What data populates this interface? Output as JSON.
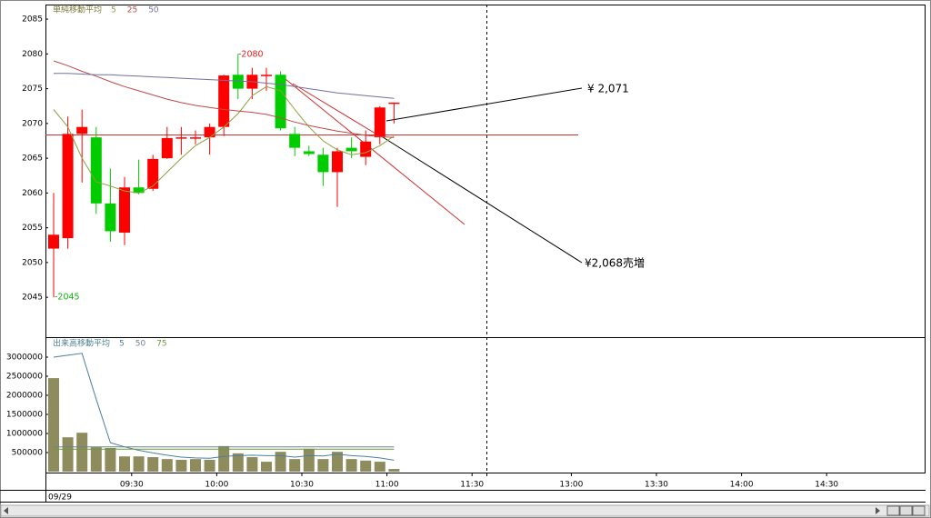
{
  "chart_data": [
    {
      "type": "candlestick",
      "title": "単純移動平均",
      "title_color": "#7a7a3a",
      "up_color": "#ff0000",
      "down_color": "#00cc00",
      "ylim": [
        2039.4,
        2087.1
      ],
      "yticks": [
        2045,
        2050,
        2055,
        2060,
        2065,
        2070,
        2075,
        2080,
        2085
      ],
      "open": [
        2052,
        2053.5,
        2068.5,
        2068,
        2058.5,
        2054.3,
        2060.8,
        2060.6,
        2065,
        2068,
        2068,
        2068,
        2069.5,
        2077,
        2075,
        2077,
        2077,
        2068.5,
        2066,
        2065.5,
        2063,
        2066.5,
        2065.2,
        2068,
        2073,
        null,
        null,
        null,
        null,
        null,
        null,
        null,
        null,
        null,
        null,
        null,
        null,
        null,
        null,
        null,
        null,
        null,
        null,
        null,
        null,
        null,
        null,
        null,
        null,
        null,
        null,
        null,
        null,
        null,
        null,
        null,
        null,
        null,
        null,
        null,
        null
      ],
      "high": [
        2060,
        2071,
        2072,
        2069.5,
        2063.5,
        2062.3,
        2064.8,
        2065.5,
        2069.5,
        2069.5,
        2069,
        2070,
        2077,
        2080,
        2078,
        2078,
        2077.5,
        2069.5,
        2066.8,
        2066.5,
        2066.5,
        2068,
        2069,
        2072.5,
        2073,
        null,
        null,
        null,
        null,
        null,
        null,
        null,
        null,
        null,
        null,
        null,
        null,
        null,
        null,
        null,
        null,
        null,
        null,
        null,
        null,
        null,
        null,
        null,
        null,
        null,
        null,
        null,
        null,
        null,
        null,
        null,
        null,
        null,
        null,
        null,
        null
      ],
      "low": [
        2045,
        2052,
        2061.5,
        2057,
        2053,
        2052.5,
        2059.8,
        2060.3,
        2064.9,
        2065.5,
        2067,
        2065.5,
        2068.2,
        2073.5,
        2073.5,
        2074.7,
        2069,
        2065.3,
        2065.3,
        2061,
        2058,
        2065,
        2064,
        2067,
        2070,
        null,
        null,
        null,
        null,
        null,
        null,
        null,
        null,
        null,
        null,
        null,
        null,
        null,
        null,
        null,
        null,
        null,
        null,
        null,
        null,
        null,
        null,
        null,
        null,
        null,
        null,
        null,
        null,
        null,
        null,
        null,
        null,
        null,
        null,
        null,
        null
      ],
      "close": [
        2054,
        2068.5,
        2069.5,
        2058.5,
        2054.5,
        2060.8,
        2060,
        2064.9,
        2067.9,
        2068,
        2068,
        2069.5,
        2076.9,
        2075,
        2077,
        2077,
        2069.3,
        2066.5,
        2065.6,
        2063,
        2066,
        2066,
        2067.4,
        2072.3,
        2073,
        null,
        null,
        null,
        null,
        null,
        null,
        null,
        null,
        null,
        null,
        null,
        null,
        null,
        null,
        null,
        null,
        null,
        null,
        null,
        null,
        null,
        null,
        null,
        null,
        null,
        null,
        null,
        null,
        null,
        null,
        null,
        null,
        null,
        null,
        null,
        null
      ],
      "series": [
        {
          "name": "5",
          "color": "#8ca040",
          "values": [
            2072,
            2069.5,
            2065,
            2061.6,
            2061,
            2060.3,
            2060,
            2061,
            2063,
            2065,
            2066.8,
            2068,
            2069.5,
            2071.4,
            2074,
            2075.3,
            2074.7,
            2072,
            2069.5,
            2067.5,
            2066.2,
            2065.5,
            2065.8,
            2066.8,
            2068.2,
            null,
            null,
            null,
            null,
            null,
            null,
            null,
            null,
            null,
            null,
            null,
            null,
            null,
            null,
            null,
            null,
            null,
            null,
            null,
            null,
            null,
            null,
            null,
            null,
            null,
            null,
            null,
            null,
            null,
            null,
            null,
            null,
            null,
            null,
            null,
            null
          ]
        },
        {
          "name": "25",
          "color": "#c04848",
          "values": [
            2079,
            2078.3,
            2077.5,
            2076.8,
            2076,
            2075.3,
            2074.7,
            2074.1,
            2073.5,
            2073,
            2072.6,
            2072.3,
            2072,
            2071.8,
            2071.6,
            2071.3,
            2070.8,
            2070.2,
            2069.7,
            2069.3,
            2068.9,
            2068.6,
            2068.3,
            2068.1,
            2068,
            null,
            null,
            null,
            null,
            null,
            null,
            null,
            null,
            null,
            null,
            null,
            null,
            null,
            null,
            null,
            null,
            null,
            null,
            null,
            null,
            null,
            null,
            null,
            null,
            null,
            null,
            null,
            null,
            null,
            null,
            null,
            null,
            null,
            null,
            null,
            null
          ]
        },
        {
          "name": "50",
          "color": "#7070a0",
          "values": [
            2077.2,
            2077.2,
            2077.1,
            2077,
            2077,
            2076.9,
            2076.8,
            2076.7,
            2076.6,
            2076.5,
            2076.4,
            2076.3,
            2076.2,
            2076.1,
            2076,
            2075.8,
            2075.6,
            2075.3,
            2075,
            2074.7,
            2074.4,
            2074.2,
            2074,
            2073.8,
            2073.6,
            null,
            null,
            null,
            null,
            null,
            null,
            null,
            null,
            null,
            null,
            null,
            null,
            null,
            null,
            null,
            null,
            null,
            null,
            null,
            null,
            null,
            null,
            null,
            null,
            null,
            null,
            null,
            null,
            null,
            null,
            null,
            null,
            null,
            null,
            null,
            null
          ]
        }
      ],
      "annotations": [
        "-2080",
        "-2045",
        "¥ 2,071",
        "¥2,068売増"
      ]
    },
    {
      "type": "bar",
      "title": "出来高移動平均",
      "title_color": "#4a7f8f",
      "color": "#8e8c5c",
      "date": "09/29",
      "categories": [
        null,
        null,
        null,
        null,
        null,
        null,
        "09:30",
        null,
        null,
        null,
        null,
        null,
        "10:00",
        null,
        null,
        null,
        null,
        null,
        "10:30",
        null,
        null,
        null,
        null,
        null,
        "11:00",
        null,
        null,
        null,
        null,
        null,
        "11:30",
        null,
        null,
        null,
        null,
        null,
        null,
        "13:00",
        null,
        null,
        null,
        null,
        null,
        "13:30",
        null,
        null,
        null,
        null,
        null,
        "14:00",
        null,
        null,
        null,
        null,
        null,
        "14:30",
        null,
        null,
        null,
        null,
        null
      ],
      "ylim": [
        0,
        3500000
      ],
      "yticks": [
        500000,
        1000000,
        1500000,
        2000000,
        2500000,
        3000000
      ],
      "values": [
        2450000,
        900000,
        1020000,
        640000,
        620000,
        400000,
        400000,
        380000,
        330000,
        310000,
        330000,
        310000,
        670000,
        480000,
        380000,
        260000,
        520000,
        330000,
        600000,
        330000,
        520000,
        330000,
        290000,
        260000,
        70000,
        null,
        null,
        null,
        null,
        null,
        null,
        null,
        null,
        null,
        null,
        null,
        null,
        null,
        null,
        null,
        null,
        null,
        null,
        null,
        null,
        null,
        null,
        null,
        null,
        null,
        null,
        null,
        null,
        null,
        null,
        null,
        null,
        null,
        null,
        null,
        null
      ],
      "series": [
        {
          "name": "5",
          "color": "#4a80a0",
          "values": [
            3000000,
            3050000,
            3100000,
            1900000,
            760000,
            650000,
            560000,
            490000,
            430000,
            380000,
            360000,
            350000,
            400000,
            420000,
            430000,
            420000,
            420000,
            380000,
            420000,
            410000,
            460000,
            420000,
            400000,
            360000,
            300000,
            null,
            null,
            null,
            null,
            null,
            null,
            null,
            null,
            null,
            null,
            null,
            null,
            null,
            null,
            null,
            null,
            null,
            null,
            null,
            null,
            null,
            null,
            null,
            null,
            null,
            null,
            null,
            null,
            null,
            null,
            null,
            null,
            null,
            null,
            null,
            null
          ]
        },
        {
          "name": "50",
          "color": "#708090",
          "values": [
            650000,
            650000,
            650000,
            650000,
            650000,
            650000,
            650000,
            650000,
            650000,
            650000,
            650000,
            650000,
            650000,
            650000,
            650000,
            650000,
            650000,
            650000,
            650000,
            650000,
            650000,
            650000,
            650000,
            650000,
            650000,
            null,
            null,
            null,
            null,
            null,
            null,
            null,
            null,
            null,
            null,
            null,
            null,
            null,
            null,
            null,
            null,
            null,
            null,
            null,
            null,
            null,
            null,
            null,
            null,
            null,
            null,
            null,
            null,
            null,
            null,
            null,
            null,
            null,
            null,
            null,
            null
          ]
        },
        {
          "name": "75",
          "color": "#6a9a3a",
          "values": [
            590000,
            590000,
            590000,
            590000,
            590000,
            590000,
            590000,
            590000,
            590000,
            590000,
            590000,
            590000,
            590000,
            590000,
            590000,
            590000,
            590000,
            590000,
            590000,
            590000,
            590000,
            590000,
            590000,
            590000,
            590000,
            null,
            null,
            null,
            null,
            null,
            null,
            null,
            null,
            null,
            null,
            null,
            null,
            null,
            null,
            null,
            null,
            null,
            null,
            null,
            null,
            null,
            null,
            null,
            null,
            null,
            null,
            null,
            null,
            null,
            null,
            null,
            null,
            null,
            null,
            null,
            null
          ]
        }
      ]
    }
  ]
}
